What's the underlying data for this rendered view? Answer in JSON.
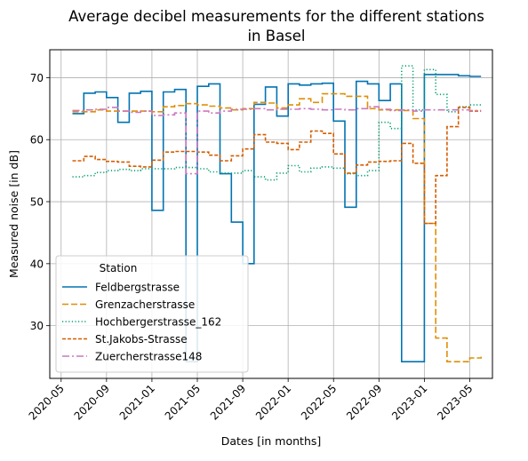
{
  "chart_data": {
    "type": "line",
    "step": true,
    "title_line1": "Average decibel measurements for the different stations",
    "title_line2": "in Basel",
    "xlabel": "Dates [in months]",
    "ylabel": "Measured noise [in dB]",
    "grid": true,
    "legend_position": "lower-left",
    "legend_title": "Station",
    "xlim": [
      "2020-04",
      "2023-07"
    ],
    "ylim": [
      21.5,
      74.5
    ],
    "x_ticks": [
      {
        "date": "2020-05",
        "label": "2020-05"
      },
      {
        "date": "2020-09",
        "label": "2020-09"
      },
      {
        "date": "2021-01",
        "label": "2021-01"
      },
      {
        "date": "2021-05",
        "label": "2021-05"
      },
      {
        "date": "2021-09",
        "label": "2021-09"
      },
      {
        "date": "2022-01",
        "label": "2022-01"
      },
      {
        "date": "2022-05",
        "label": "2022-05"
      },
      {
        "date": "2022-09",
        "label": "2022-09"
      },
      {
        "date": "2023-01",
        "label": "2023-01"
      },
      {
        "date": "2023-05",
        "label": "2023-05"
      }
    ],
    "y_ticks": [
      {
        "value": 30,
        "label": "30"
      },
      {
        "value": 40,
        "label": "40"
      },
      {
        "value": 50,
        "label": "50"
      },
      {
        "value": 60,
        "label": "60"
      },
      {
        "value": 70,
        "label": "70"
      }
    ],
    "months": [
      "2020-06",
      "2020-07",
      "2020-08",
      "2020-09",
      "2020-10",
      "2020-11",
      "2020-12",
      "2021-01",
      "2021-02",
      "2021-03",
      "2021-04",
      "2021-05",
      "2021-06",
      "2021-07",
      "2021-08",
      "2021-09",
      "2021-10",
      "2021-11",
      "2021-12",
      "2022-01",
      "2022-02",
      "2022-03",
      "2022-04",
      "2022-05",
      "2022-06",
      "2022-07",
      "2022-08",
      "2022-09",
      "2022-10",
      "2022-11",
      "2022-12",
      "2023-01",
      "2023-02",
      "2023-03",
      "2023-04",
      "2023-05",
      "2023-06"
    ],
    "series": [
      {
        "name": "Feldbergstrasse",
        "color": "#0173b2",
        "dash": "",
        "values": [
          64.2,
          67.5,
          67.7,
          66.8,
          62.8,
          67.5,
          67.8,
          48.6,
          67.7,
          68.1,
          24.2,
          68.6,
          69.0,
          54.5,
          46.7,
          40.0,
          65.7,
          68.5,
          63.8,
          69.0,
          68.8,
          69.0,
          69.1,
          63.0,
          49.1,
          69.4,
          69.0,
          66.3,
          69.0,
          24.2,
          24.2,
          70.5,
          70.5,
          70.5,
          70.3,
          70.2,
          70.2
        ]
      },
      {
        "name": "Grenzacherstrasse",
        "color": "#de8f05",
        "dash": "7,3",
        "values": [
          64.5,
          64.5,
          64.8,
          64.6,
          64.6,
          64.6,
          64.6,
          64.5,
          65.3,
          65.5,
          65.8,
          65.6,
          65.4,
          65.1,
          64.8,
          65.0,
          66.0,
          65.9,
          65.1,
          65.6,
          66.6,
          66.0,
          67.4,
          67.4,
          67.0,
          67.0,
          65.0,
          64.8,
          64.8,
          64.7,
          63.4,
          46.5,
          28.0,
          24.2,
          24.2,
          24.8,
          25.0
        ]
      },
      {
        "name": "Hochbergerstrasse_162",
        "color": "#029e73",
        "dash": "1.2,2.4",
        "values": [
          54.0,
          54.2,
          54.7,
          55.0,
          55.2,
          55.0,
          55.3,
          55.3,
          55.3,
          55.5,
          55.5,
          55.3,
          54.8,
          54.6,
          54.6,
          55.0,
          54.0,
          53.5,
          54.6,
          55.8,
          54.8,
          55.4,
          55.6,
          55.4,
          54.5,
          54.2,
          55.0,
          62.8,
          61.8,
          71.9,
          64.8,
          71.3,
          67.3,
          64.5,
          65.3,
          65.6,
          65.6
        ]
      },
      {
        "name": "St.Jakobs-Strasse",
        "color": "#d55e00",
        "dash": "4,2",
        "values": [
          56.6,
          57.3,
          56.8,
          56.5,
          56.4,
          55.7,
          55.6,
          56.7,
          58.0,
          58.1,
          58.1,
          58.0,
          57.5,
          56.6,
          57.4,
          58.5,
          60.8,
          59.6,
          59.4,
          58.4,
          59.6,
          61.4,
          61.0,
          57.7,
          54.6,
          55.9,
          56.4,
          56.5,
          56.6,
          59.4,
          56.2,
          46.5,
          54.2,
          62.1,
          65.2,
          64.6,
          64.6
        ]
      },
      {
        "name": "Zuercherstrasse148",
        "color": "#cc78bc",
        "dash": "8,3,2,3",
        "values": [
          64.7,
          64.8,
          64.9,
          65.2,
          64.6,
          64.4,
          64.6,
          63.9,
          64.0,
          64.3,
          54.5,
          64.6,
          64.3,
          64.6,
          64.9,
          64.9,
          65.0,
          64.8,
          64.9,
          64.9,
          65.0,
          64.9,
          64.8,
          64.9,
          64.8,
          65.0,
          65.3,
          64.9,
          64.7,
          64.8,
          64.6,
          64.8,
          64.8,
          64.8,
          64.8,
          64.7,
          64.7
        ]
      }
    ]
  }
}
